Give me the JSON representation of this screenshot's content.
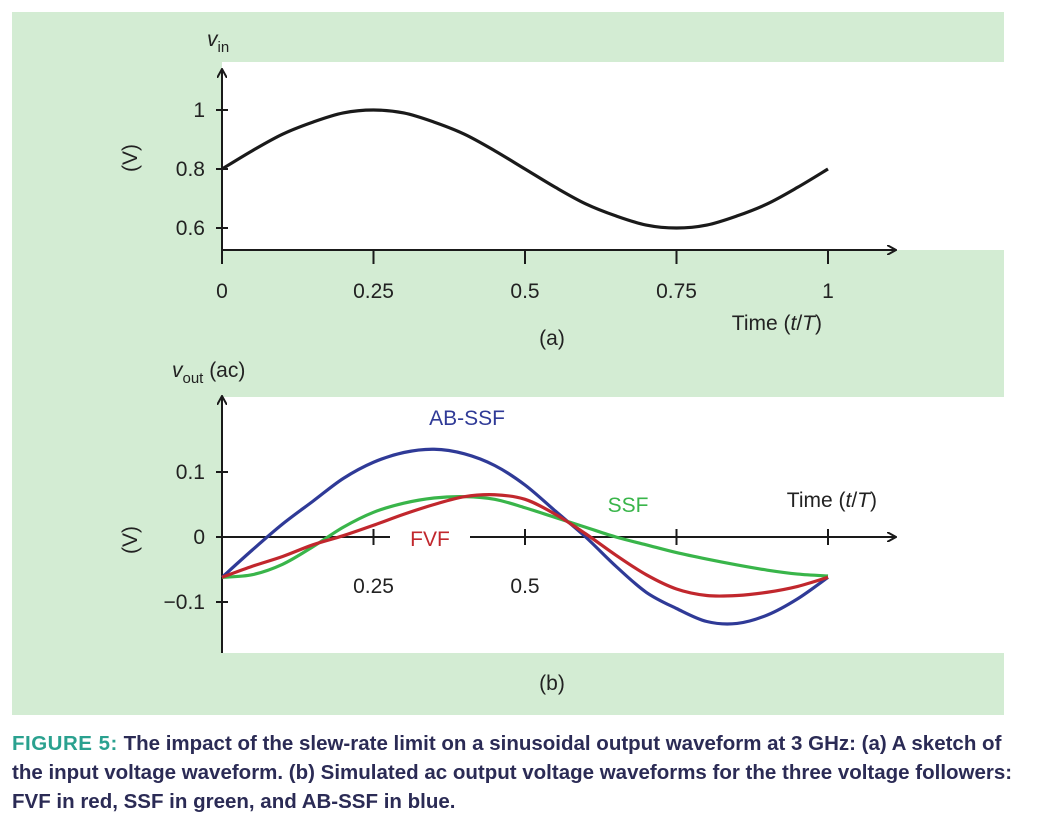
{
  "chart_data": [
    {
      "id": "a",
      "type": "line",
      "ylabel_symbol": "v",
      "ylabel_sub": "in",
      "yunit": "(V)",
      "xlabel": "Time (t/T)",
      "panel_label": "(a)",
      "x_ticks": [
        "0",
        "0.25",
        "0.5",
        "0.75",
        "1"
      ],
      "x_tick_values": [
        0,
        0.25,
        0.5,
        0.75,
        1
      ],
      "y_ticks": [
        "1",
        "0.8",
        "0.6"
      ],
      "y_tick_values": [
        1,
        0.8,
        0.6
      ],
      "xlim": [
        0,
        1.1
      ],
      "ylim": [
        0.53,
        1.18
      ],
      "series": [
        {
          "color": "#1a1a1a",
          "x": [
            0,
            0.05,
            0.1,
            0.15,
            0.2,
            0.25,
            0.3,
            0.35,
            0.4,
            0.45,
            0.5,
            0.55,
            0.6,
            0.65,
            0.7,
            0.75,
            0.8,
            0.85,
            0.9,
            0.95,
            1.0
          ],
          "y": [
            0.8,
            0.862,
            0.918,
            0.959,
            0.99,
            1.0,
            0.99,
            0.959,
            0.918,
            0.862,
            0.8,
            0.738,
            0.682,
            0.641,
            0.61,
            0.6,
            0.61,
            0.641,
            0.682,
            0.738,
            0.8
          ]
        }
      ]
    },
    {
      "id": "b",
      "type": "line",
      "ylabel_symbol": "v",
      "ylabel_sub": "out",
      "ylabel_suffix": " (ac)",
      "yunit": "(V)",
      "xlabel": "Time (t/T)",
      "panel_label": "(b)",
      "x_ticks": [
        "0.25",
        "0.5"
      ],
      "x_tick_values": [
        0.25,
        0.5
      ],
      "extra_tick_values": [
        0.75,
        1
      ],
      "y_ticks": [
        "0.1",
        "0",
        "−0.1"
      ],
      "y_tick_values": [
        0.1,
        0,
        -0.1
      ],
      "xlim": [
        0,
        1.1
      ],
      "ylim": [
        -0.18,
        0.22
      ],
      "series": [
        {
          "name": "AB-SSF",
          "color": "#2f3a97",
          "x": [
            0,
            0.05,
            0.1,
            0.15,
            0.2,
            0.25,
            0.3,
            0.35,
            0.4,
            0.45,
            0.5,
            0.55,
            0.6,
            0.65,
            0.7,
            0.75,
            0.8,
            0.85,
            0.9,
            0.95,
            1.0
          ],
          "y": [
            -0.062,
            -0.02,
            0.02,
            0.055,
            0.09,
            0.115,
            0.13,
            0.135,
            0.128,
            0.11,
            0.08,
            0.04,
            0.0,
            -0.045,
            -0.085,
            -0.11,
            -0.13,
            -0.133,
            -0.12,
            -0.095,
            -0.062
          ]
        },
        {
          "name": "SSF",
          "color": "#39b54a",
          "x": [
            0,
            0.05,
            0.1,
            0.15,
            0.2,
            0.25,
            0.3,
            0.35,
            0.4,
            0.45,
            0.5,
            0.55,
            0.6,
            0.65,
            0.7,
            0.75,
            0.8,
            0.85,
            0.9,
            0.95,
            1.0
          ],
          "y": [
            -0.062,
            -0.058,
            -0.042,
            -0.015,
            0.015,
            0.038,
            0.052,
            0.06,
            0.062,
            0.058,
            0.045,
            0.03,
            0.015,
            0.0,
            -0.012,
            -0.024,
            -0.034,
            -0.043,
            -0.051,
            -0.057,
            -0.06
          ]
        },
        {
          "name": "FVF",
          "color": "#c1272d",
          "x": [
            0,
            0.05,
            0.1,
            0.15,
            0.2,
            0.25,
            0.3,
            0.35,
            0.4,
            0.45,
            0.5,
            0.55,
            0.6,
            0.65,
            0.7,
            0.75,
            0.8,
            0.85,
            0.9,
            0.95,
            1.0
          ],
          "y": [
            -0.062,
            -0.045,
            -0.03,
            -0.012,
            0.002,
            0.018,
            0.035,
            0.05,
            0.062,
            0.065,
            0.058,
            0.035,
            0.005,
            -0.028,
            -0.058,
            -0.08,
            -0.09,
            -0.09,
            -0.085,
            -0.076,
            -0.062
          ]
        }
      ],
      "series_labels": [
        "AB-SSF",
        "SSF",
        "FVF"
      ]
    }
  ],
  "caption": {
    "label": "FIGURE 5:",
    "text": " The impact of the slew-rate limit on a sinusoidal output waveform at 3 GHz: (a) A sketch of the input voltage waveform. (b) Simulated ac output voltage waveforms for the three voltage followers: FVF in red, SSF in green, and AB-SSF in blue."
  },
  "colors": {
    "panel_background": "#d3ecd3",
    "plot_background": "#ffffff",
    "caption_text": "#2b2b55",
    "caption_label": "#2aa18f"
  }
}
